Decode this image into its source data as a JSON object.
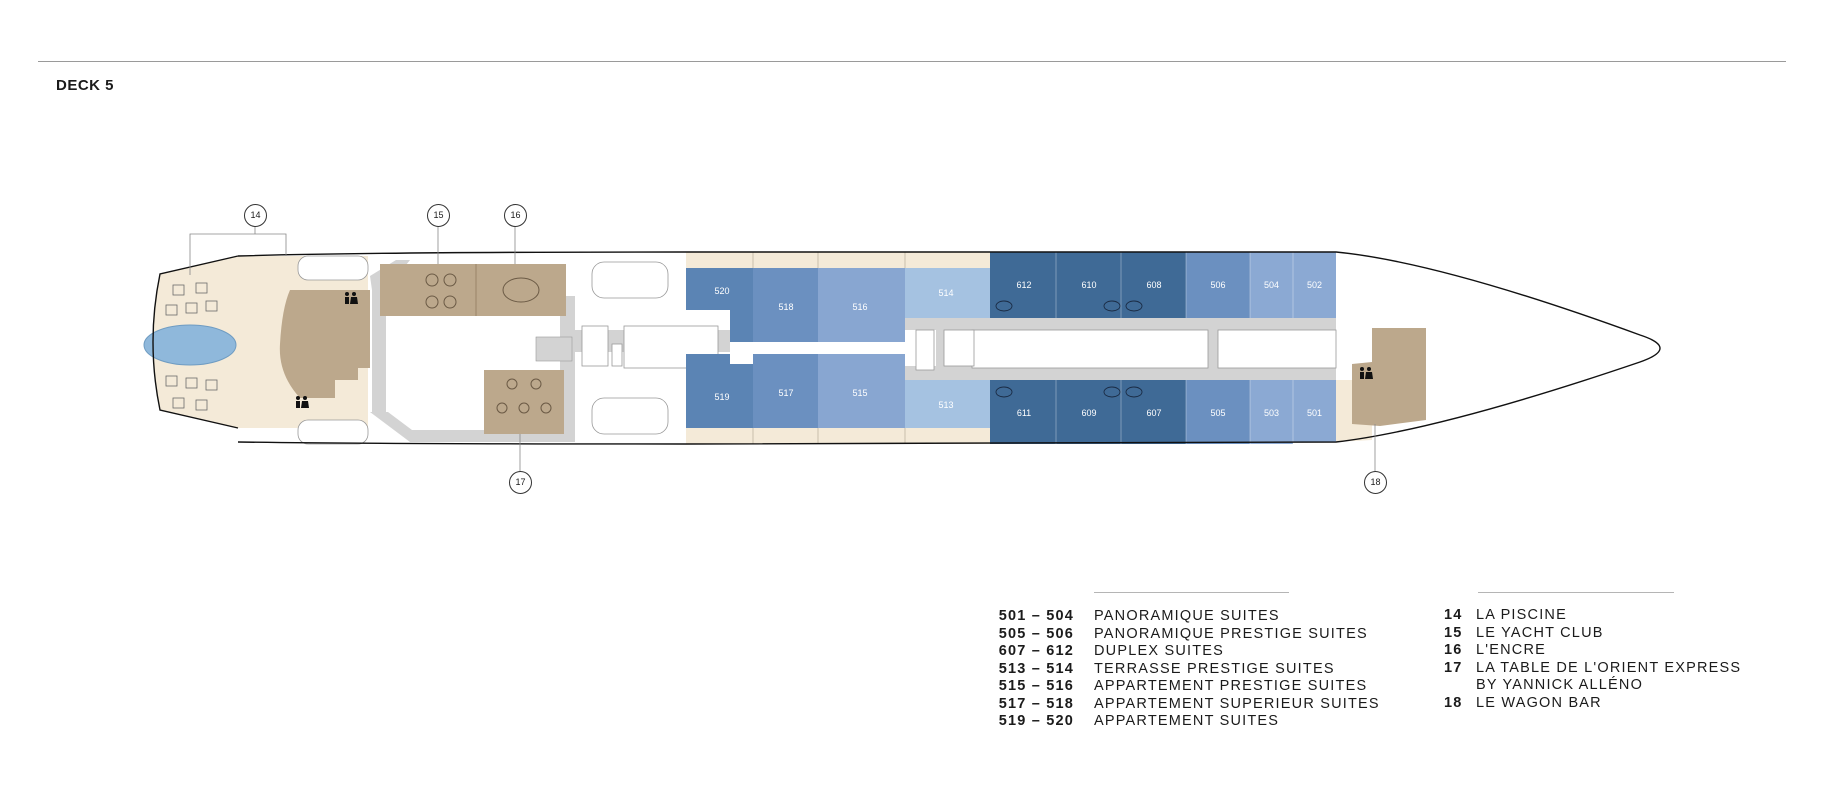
{
  "deck": {
    "title": "DECK 5"
  },
  "colors": {
    "panoramique": "#8ba9d3",
    "panoramique_prestige": "#6b90c0",
    "duplex": "#3f6a96",
    "terrasse_prestige": "#a5c2e1",
    "appartement_prestige": "#88a6d1",
    "appartement_superieur": "#6b90c0",
    "appartement": "#5b84b4",
    "venue": "#bca88c",
    "outdoor": "#f4ead8",
    "corridor": "#d3d3d3",
    "pool": "#8fb8db"
  },
  "cabins": {
    "c520": "520",
    "c518": "518",
    "c516": "516",
    "c514": "514",
    "c612": "612",
    "c610": "610",
    "c608": "608",
    "c506": "506",
    "c504": "504",
    "c502": "502",
    "c519": "519",
    "c517": "517",
    "c515": "515",
    "c513": "513",
    "c611": "611",
    "c609": "609",
    "c607": "607",
    "c505": "505",
    "c503": "503",
    "c501": "501"
  },
  "callouts": {
    "c14": "14",
    "c15": "15",
    "c16": "16",
    "c17": "17",
    "c18": "18"
  },
  "legend_suites": [
    {
      "range": "501 – 504",
      "name": "PANORAMIQUE SUITES"
    },
    {
      "range": "505 – 506",
      "name": "PANORAMIQUE PRESTIGE SUITES"
    },
    {
      "range": "607 – 612",
      "name": "DUPLEX SUITES"
    },
    {
      "range": "513 – 514",
      "name": "TERRASSE PRESTIGE SUITES"
    },
    {
      "range": "515 – 516",
      "name": "APPARTEMENT PRESTIGE SUITES"
    },
    {
      "range": "517 – 518",
      "name": "APPARTEMENT SUPERIEUR SUITES"
    },
    {
      "range": "519 – 520",
      "name": "APPARTEMENT SUITES"
    }
  ],
  "legend_venues": [
    {
      "num": "14",
      "name": "LA PISCINE"
    },
    {
      "num": "15",
      "name": "LE YACHT CLUB"
    },
    {
      "num": "16",
      "name": "L'ENCRE"
    },
    {
      "num": "17",
      "name": "LA TABLE DE L'ORIENT EXPRESS"
    },
    {
      "num": "",
      "name": "BY YANNICK ALLÉNO"
    },
    {
      "num": "18",
      "name": "LE WAGON BAR"
    }
  ]
}
